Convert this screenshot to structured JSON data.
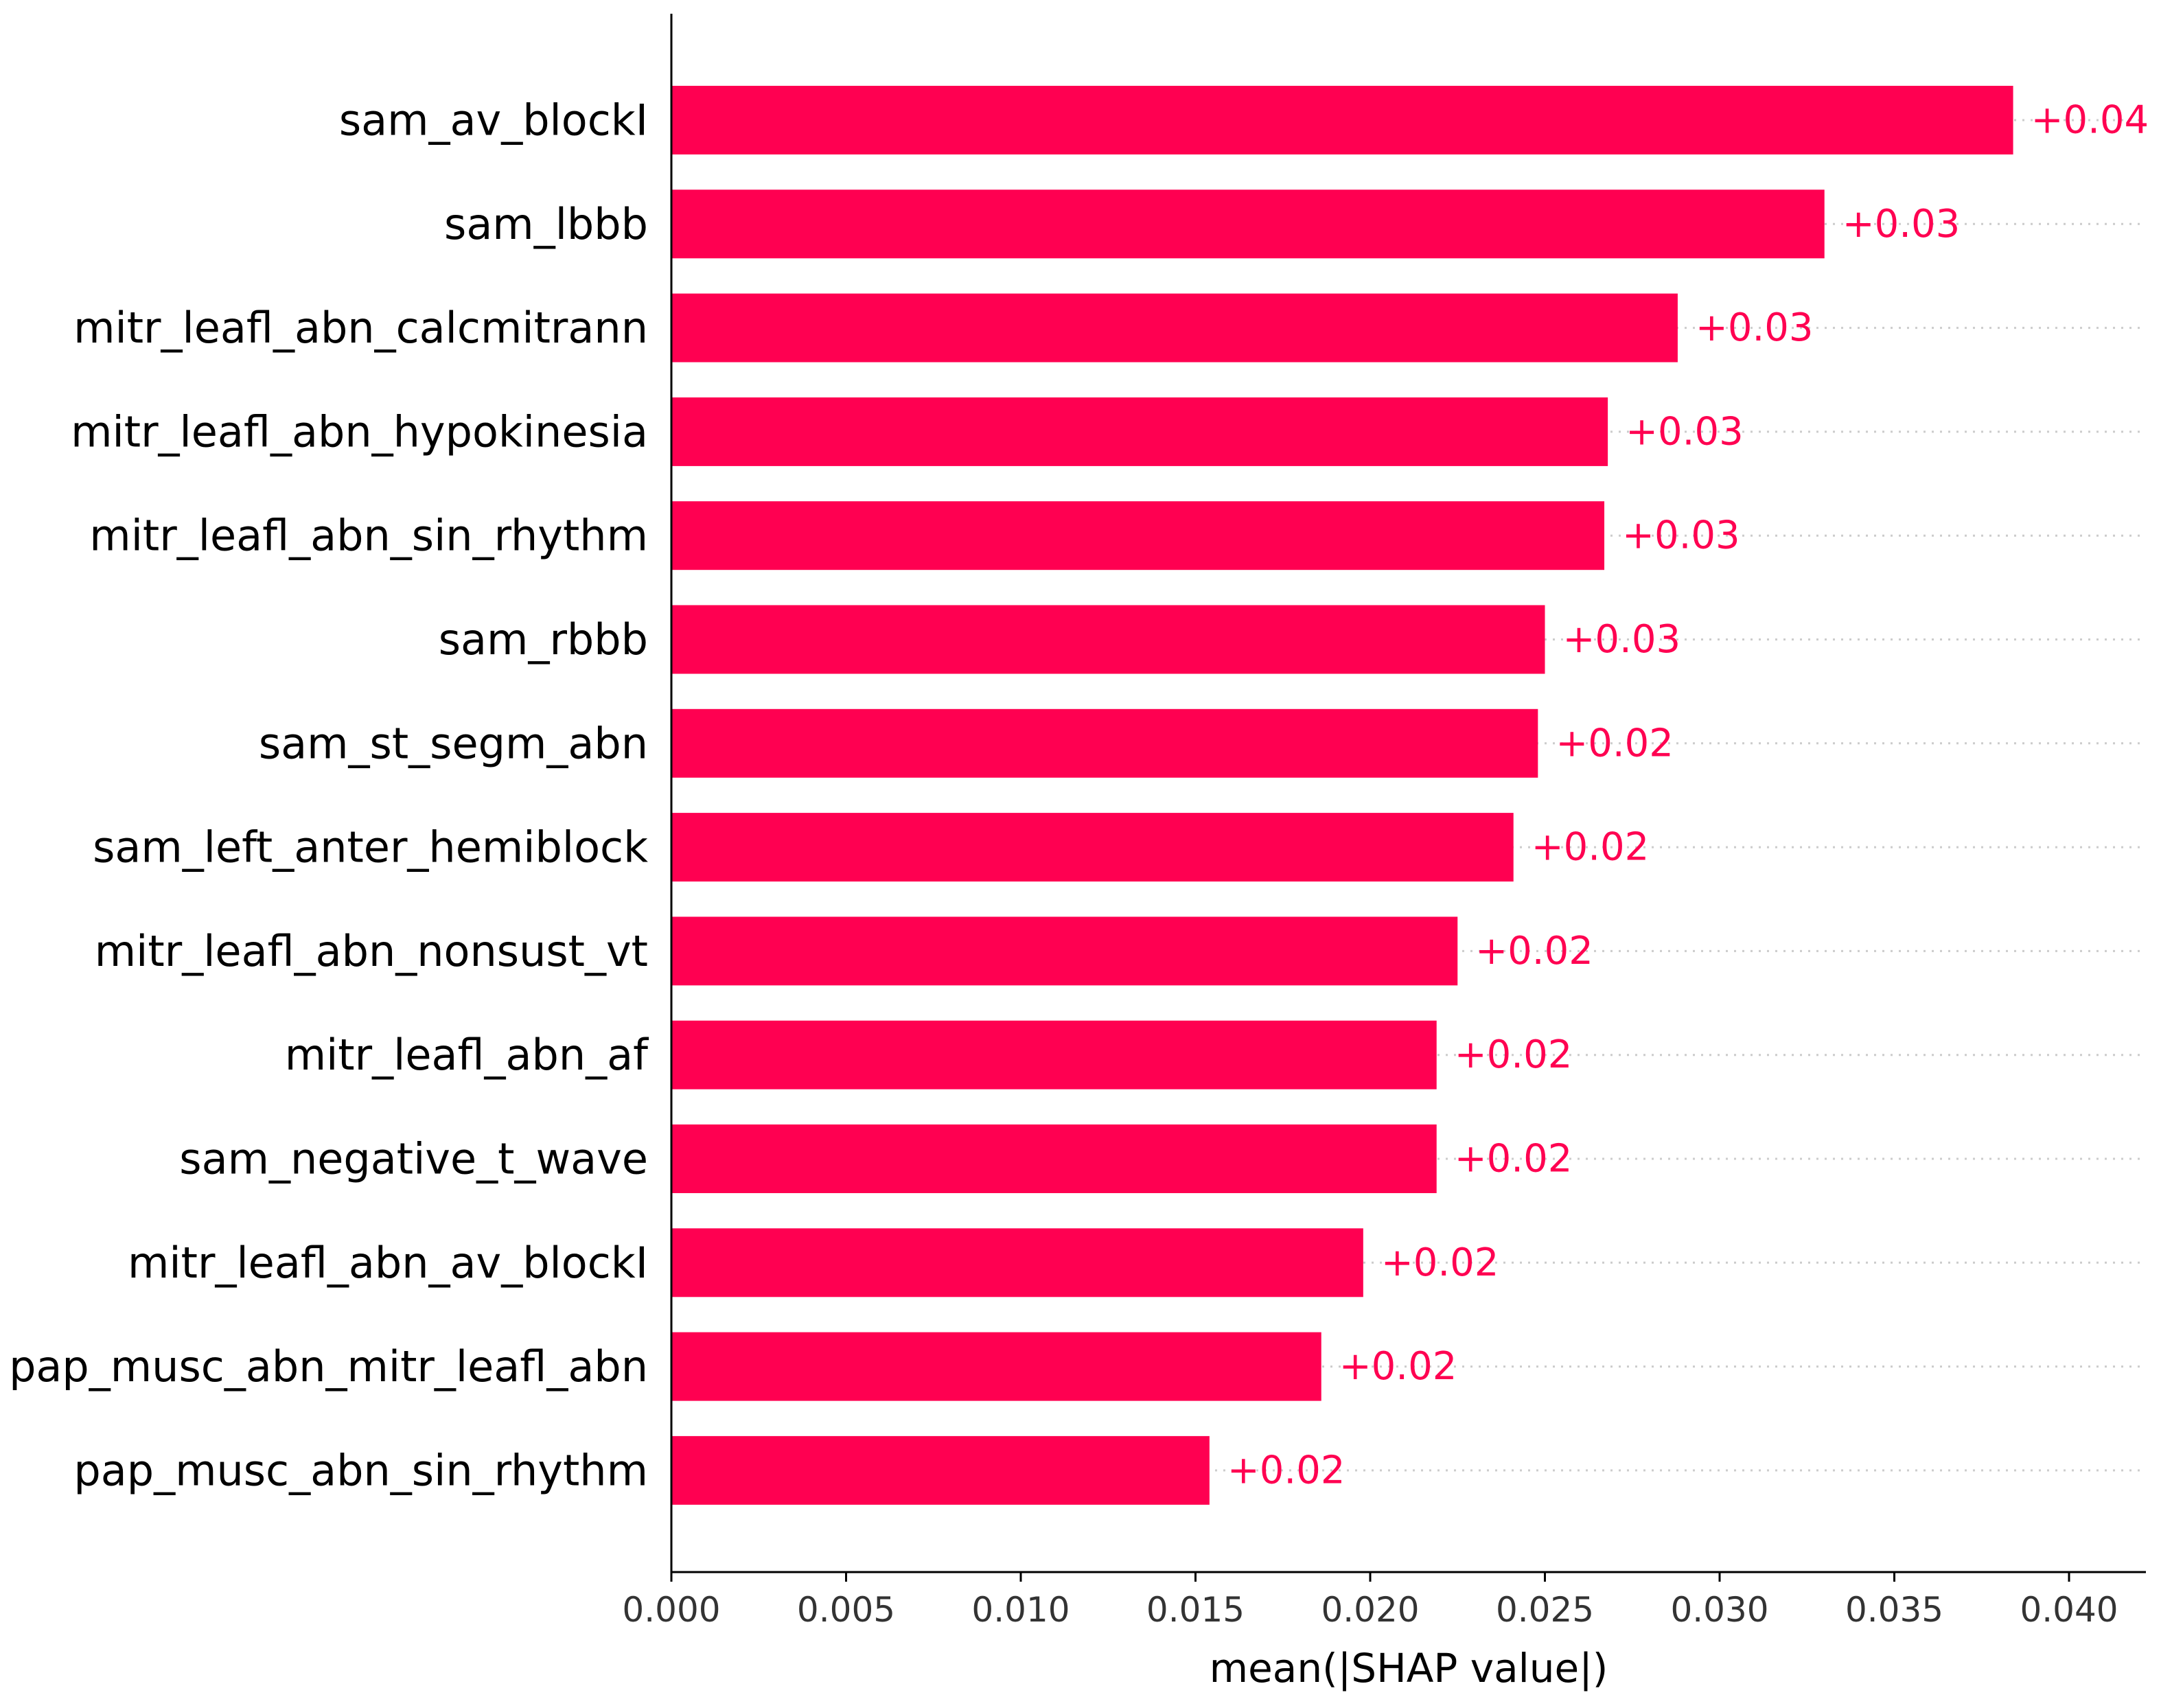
{
  "chart_data": {
    "type": "bar",
    "orientation": "horizontal",
    "xlabel": "mean(|SHAP value|)",
    "xlim": [
      0.0,
      0.0422
    ],
    "xticks": [
      "0.000",
      "0.005",
      "0.010",
      "0.015",
      "0.020",
      "0.025",
      "0.030",
      "0.035",
      "0.040"
    ],
    "bar_color": "#ff0051",
    "gridline": "dotted",
    "categories": [
      "sam_av_blockI",
      "sam_lbbb",
      "mitr_leafl_abn_calcmitrann",
      "mitr_leafl_abn_hypokinesia",
      "mitr_leafl_abn_sin_rhythm",
      "sam_rbbb",
      "sam_st_segm_abn",
      "sam_left_anter_hemiblock",
      "mitr_leafl_abn_nonsust_vt",
      "mitr_leafl_abn_af",
      "sam_negative_t_wave",
      "mitr_leafl_abn_av_blockI",
      "pap_musc_abn_mitr_leafl_abn",
      "pap_musc_abn_sin_rhythm"
    ],
    "values": [
      0.0384,
      0.033,
      0.0288,
      0.0268,
      0.0267,
      0.025,
      0.0248,
      0.0241,
      0.0225,
      0.0219,
      0.0219,
      0.0198,
      0.0186,
      0.0154
    ],
    "value_labels": [
      "+0.04",
      "+0.03",
      "+0.03",
      "+0.03",
      "+0.03",
      "+0.03",
      "+0.02",
      "+0.02",
      "+0.02",
      "+0.02",
      "+0.02",
      "+0.02",
      "+0.02",
      "+0.02"
    ]
  }
}
